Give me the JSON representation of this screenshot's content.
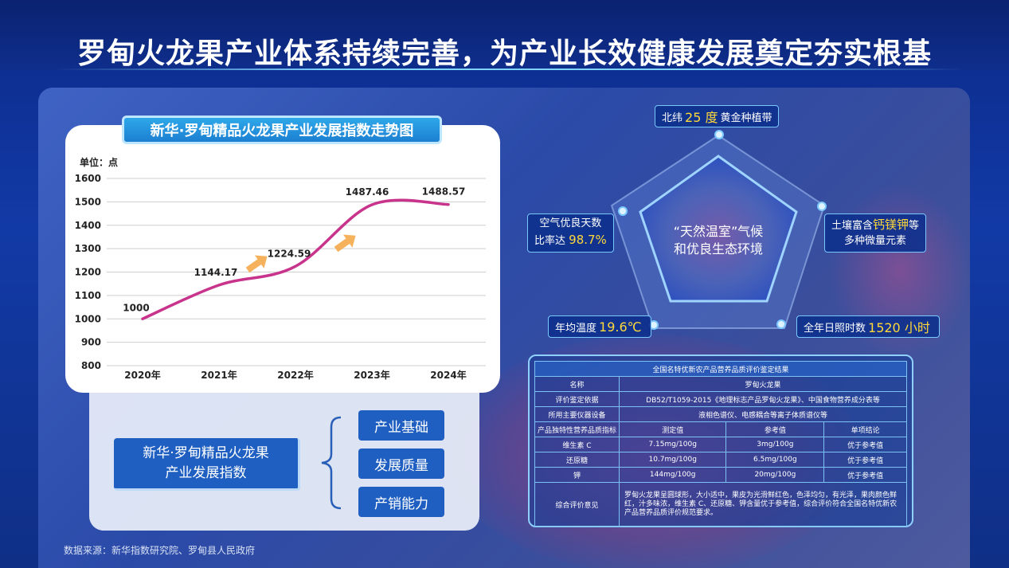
{
  "title": "罗甸火龙果产业体系持续完善，为产业长效健康发展奠定夯实根基",
  "chart_title": "新华·罗甸精品火龙果产业发展指数走势图",
  "chart_data": {
    "type": "line",
    "title": "新华·罗甸精品火龙果产业发展指数走势图",
    "unit_label": "单位：点",
    "categories": [
      "2020年",
      "2021年",
      "2022年",
      "2023年",
      "2024年"
    ],
    "values": [
      1000,
      1144.17,
      1224.59,
      1487.46,
      1488.57
    ],
    "value_labels": [
      "1000",
      "1144.17",
      "1224.59",
      "1487.46",
      "1488.57"
    ],
    "yticks": [
      800,
      900,
      1000,
      1100,
      1200,
      1300,
      1400,
      1500,
      1600
    ],
    "ylim": [
      800,
      1600
    ],
    "line_color": "#c8338c",
    "arrow_color": "#f5a94a",
    "grid": true
  },
  "index": {
    "main_line1": "新华·罗甸精品火龙果",
    "main_line2": "产业发展指数",
    "subs": [
      "产业基础",
      "发展质量",
      "产销能力"
    ]
  },
  "source": "数据来源：新华指数研究院、罗甸县人民政府",
  "pentagon": {
    "center_line1": "“天然温室”气候",
    "center_line2": "和优良生态环境",
    "top_pre": "北纬",
    "top_hl": "25 度",
    "top_post": "黄金种植带",
    "left_line1": "空气优良天数",
    "left_pre": "比率达",
    "left_hl": "98.7%",
    "right_pre": "土壤富含",
    "right_hl": "钙镁钾",
    "right_post": "等",
    "right_line2": "多种微量元素",
    "bl_pre": "年均温度",
    "bl_hl": "19.6℃",
    "br_pre": "全年日照时数",
    "br_hl": "1520 小时"
  },
  "eval_table": {
    "title": "全国名特优新农产品营养品质评价鉴定结果",
    "name_label": "名称",
    "name_value": "罗甸火龙果",
    "basis_label": "评价鉴定依据",
    "basis_value": "DB52/T1059-2015《地理标志产品罗甸火龙果》、中国食物营养成分表等",
    "equip_label": "所用主要仪器设备",
    "equip_value": "液相色谱仪、电感耦合等离子体质谱仪等",
    "header": [
      "产品独特性营养品质指标",
      "测定值",
      "参考值",
      "单项结论"
    ],
    "rows": [
      [
        "维生素 C",
        "7.15mg/100g",
        "3mg/100g",
        "优于参考值"
      ],
      [
        "还原糖",
        "10.7mg/100g",
        "6.5mg/100g",
        "优于参考值"
      ],
      [
        "钾",
        "144mg/100g",
        "20mg/100g",
        "优于参考值"
      ]
    ],
    "opinion_label": "综合评价意见",
    "opinion_value": "罗甸火龙果呈圆球形，大小适中，果皮为光滑鲜红色，色泽均匀，有光泽，果肉颜色鲜红，汁多味浓，维生素 C、还原糖、钾含量优于参考值，综合评价符合全国名特优新农产品营养品质评价规范要求。"
  }
}
